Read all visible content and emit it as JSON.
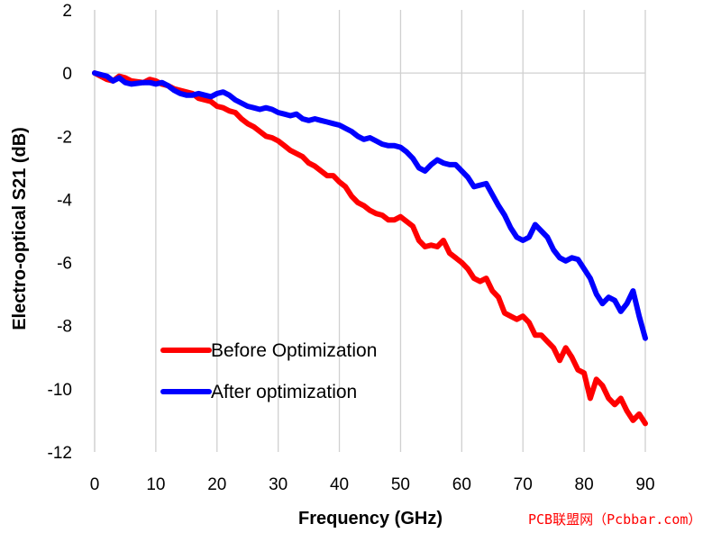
{
  "chart_data": {
    "type": "line",
    "title": "",
    "xlabel": "Frequency (GHz)",
    "ylabel": "Electro-optical S21 (dB)",
    "xlim": [
      0,
      90
    ],
    "ylim": [
      -12,
      2
    ],
    "xticks": [
      0,
      10,
      20,
      30,
      40,
      50,
      60,
      70,
      80,
      90
    ],
    "yticks": [
      2,
      0,
      -2,
      -4,
      -6,
      -8,
      -10,
      -12
    ],
    "grid": "vertical",
    "legend_position": "bottom-left",
    "series": [
      {
        "name": "Before Optimization",
        "color": "#ff0000",
        "x": [
          0,
          2,
          3,
          4,
          5,
          6,
          8,
          9,
          10,
          11,
          12,
          13,
          14,
          15,
          16,
          17,
          18,
          19,
          20,
          21,
          22,
          23,
          24,
          25,
          26,
          27,
          28,
          29,
          30,
          31,
          32,
          33,
          34,
          35,
          36,
          37,
          38,
          39,
          40,
          41,
          42,
          43,
          44,
          45,
          46,
          47,
          48,
          49,
          50,
          51,
          52,
          53,
          54,
          55,
          56,
          57,
          58,
          59,
          60,
          61,
          62,
          63,
          64,
          65,
          66,
          67,
          68,
          69,
          70,
          71,
          72,
          73,
          74,
          75,
          76,
          77,
          78,
          79,
          80,
          81,
          82,
          83,
          84,
          85,
          86,
          87,
          88,
          89,
          90
        ],
        "y": [
          0.0,
          -0.2,
          -0.25,
          -0.1,
          -0.15,
          -0.25,
          -0.3,
          -0.2,
          -0.25,
          -0.35,
          -0.4,
          -0.5,
          -0.55,
          -0.6,
          -0.65,
          -0.8,
          -0.85,
          -0.9,
          -1.05,
          -1.1,
          -1.2,
          -1.25,
          -1.45,
          -1.6,
          -1.7,
          -1.85,
          -2.0,
          -2.05,
          -2.15,
          -2.3,
          -2.45,
          -2.55,
          -2.65,
          -2.85,
          -2.95,
          -3.1,
          -3.25,
          -3.25,
          -3.45,
          -3.6,
          -3.9,
          -4.1,
          -4.2,
          -4.35,
          -4.45,
          -4.5,
          -4.65,
          -4.65,
          -4.55,
          -4.7,
          -4.85,
          -5.3,
          -5.5,
          -5.45,
          -5.5,
          -5.3,
          -5.7,
          -5.85,
          -6.0,
          -6.2,
          -6.5,
          -6.6,
          -6.5,
          -6.9,
          -7.1,
          -7.6,
          -7.7,
          -7.8,
          -7.7,
          -7.9,
          -8.3,
          -8.3,
          -8.5,
          -8.7,
          -9.1,
          -8.7,
          -9.0,
          -9.4,
          -9.5,
          -10.3,
          -9.7,
          -9.9,
          -10.3,
          -10.5,
          -10.3,
          -10.7,
          -11.0,
          -10.8,
          -11.1
        ]
      },
      {
        "name": "After optimization",
        "color": "#0000ff",
        "x": [
          0,
          2,
          3,
          4,
          5,
          6,
          8,
          9,
          10,
          11,
          12,
          13,
          14,
          15,
          16,
          17,
          18,
          19,
          20,
          21,
          22,
          23,
          24,
          25,
          26,
          27,
          28,
          29,
          30,
          31,
          32,
          33,
          34,
          35,
          36,
          37,
          38,
          39,
          40,
          41,
          42,
          43,
          44,
          45,
          46,
          47,
          48,
          49,
          50,
          51,
          52,
          53,
          54,
          55,
          56,
          57,
          58,
          59,
          60,
          61,
          62,
          63,
          64,
          65,
          66,
          67,
          68,
          69,
          70,
          71,
          72,
          73,
          74,
          75,
          76,
          77,
          78,
          79,
          80,
          81,
          82,
          83,
          84,
          85,
          86,
          87,
          88,
          89,
          90
        ],
        "y": [
          0.0,
          -0.1,
          -0.25,
          -0.15,
          -0.3,
          -0.35,
          -0.3,
          -0.3,
          -0.35,
          -0.3,
          -0.4,
          -0.55,
          -0.65,
          -0.7,
          -0.7,
          -0.65,
          -0.7,
          -0.75,
          -0.65,
          -0.6,
          -0.7,
          -0.85,
          -0.95,
          -1.05,
          -1.1,
          -1.15,
          -1.1,
          -1.15,
          -1.25,
          -1.3,
          -1.35,
          -1.3,
          -1.45,
          -1.5,
          -1.45,
          -1.5,
          -1.55,
          -1.6,
          -1.65,
          -1.75,
          -1.85,
          -2.0,
          -2.1,
          -2.05,
          -2.15,
          -2.25,
          -2.3,
          -2.3,
          -2.35,
          -2.5,
          -2.7,
          -3.0,
          -3.1,
          -2.9,
          -2.75,
          -2.85,
          -2.9,
          -2.9,
          -3.1,
          -3.3,
          -3.6,
          -3.55,
          -3.5,
          -3.85,
          -4.2,
          -4.5,
          -4.9,
          -5.2,
          -5.3,
          -5.2,
          -4.8,
          -5.0,
          -5.2,
          -5.6,
          -5.85,
          -5.95,
          -5.85,
          -5.9,
          -6.2,
          -6.5,
          -7.0,
          -7.3,
          -7.1,
          -7.2,
          -7.55,
          -7.3,
          -6.9,
          -7.7,
          -8.4
        ]
      }
    ]
  },
  "watermark": "PCB联盟网（Pcbbar.com）"
}
